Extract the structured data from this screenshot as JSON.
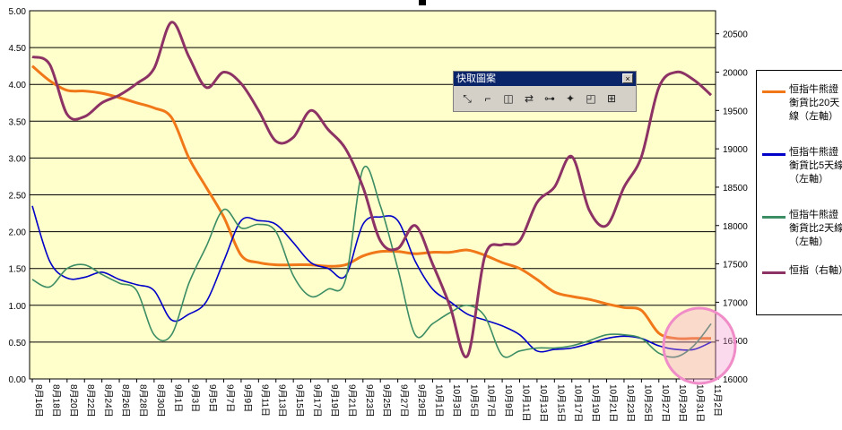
{
  "chart_data": {
    "type": "line",
    "x": [
      "8月16日",
      "8月18日",
      "8月20日",
      "8月22日",
      "8月24日",
      "8月26日",
      "8月28日",
      "8月30日",
      "9月1日",
      "9月3日",
      "9月5日",
      "9月7日",
      "9月9日",
      "9月11日",
      "9月13日",
      "9月15日",
      "9月17日",
      "9月19日",
      "9月21日",
      "9月23日",
      "9月25日",
      "9月27日",
      "9月29日",
      "10月1日",
      "10月3日",
      "10月5日",
      "10月7日",
      "10月9日",
      "10月11日",
      "10月13日",
      "10月15日",
      "10月17日",
      "10月19日",
      "10月21日",
      "10月23日",
      "10月25日",
      "10月27日",
      "10月29日",
      "10月31日",
      "11月2日"
    ],
    "y_left": {
      "ticks": [
        "0.00",
        "0.50",
        "1.00",
        "1.50",
        "2.00",
        "2.50",
        "3.00",
        "3.50",
        "4.00",
        "4.50",
        "5.00"
      ],
      "ylim": [
        0,
        5
      ]
    },
    "y_right": {
      "ticks": [
        "16000",
        "16500",
        "17000",
        "17500",
        "18000",
        "18500",
        "19000",
        "19500",
        "20000",
        "20500"
      ],
      "ylim": [
        16000,
        20800
      ]
    },
    "series": [
      {
        "name": "恒指牛熊證衡貨比20天線（左軸）",
        "axis": "left",
        "color": "#f07818",
        "values": [
          4.25,
          4.05,
          3.92,
          3.91,
          3.88,
          3.82,
          3.75,
          3.68,
          3.55,
          3.0,
          2.6,
          2.2,
          1.68,
          1.58,
          1.55,
          1.55,
          1.55,
          1.53,
          1.55,
          1.67,
          1.73,
          1.73,
          1.7,
          1.72,
          1.72,
          1.75,
          1.68,
          1.58,
          1.5,
          1.35,
          1.18,
          1.12,
          1.08,
          1.02,
          0.97,
          0.93,
          0.62,
          0.55,
          0.55,
          0.55
        ]
      },
      {
        "name": "恒指牛熊證衡貨比5天線（左軸）",
        "axis": "left",
        "color": "#0000c8",
        "values": [
          2.35,
          1.6,
          1.37,
          1.38,
          1.45,
          1.35,
          1.28,
          1.2,
          0.8,
          0.88,
          1.05,
          1.6,
          2.15,
          2.15,
          2.1,
          1.85,
          1.58,
          1.5,
          1.4,
          2.1,
          2.2,
          2.15,
          1.6,
          1.22,
          1.05,
          0.88,
          0.8,
          0.72,
          0.6,
          0.38,
          0.4,
          0.42,
          0.48,
          0.55,
          0.58,
          0.55,
          0.45,
          0.4,
          0.4,
          0.5
        ]
      },
      {
        "name": "恒指牛熊證衡貨比2天線（左軸）",
        "axis": "left",
        "color": "#3c8c64",
        "values": [
          1.35,
          1.25,
          1.5,
          1.55,
          1.42,
          1.3,
          1.2,
          0.6,
          0.6,
          1.3,
          1.8,
          2.3,
          2.05,
          2.1,
          2.0,
          1.4,
          1.12,
          1.22,
          1.35,
          2.85,
          2.35,
          1.5,
          0.6,
          0.75,
          0.9,
          1.0,
          0.85,
          0.32,
          0.38,
          0.42,
          0.42,
          0.45,
          0.52,
          0.6,
          0.6,
          0.55,
          0.35,
          0.3,
          0.45,
          0.75
        ]
      },
      {
        "name": "恒指（右軸）",
        "axis": "right",
        "color": "#8c3264",
        "values": [
          20200,
          20100,
          19450,
          19420,
          19600,
          19700,
          19850,
          20050,
          20650,
          20200,
          19800,
          20000,
          19850,
          19500,
          19100,
          19150,
          19500,
          19250,
          19000,
          18500,
          17800,
          17700,
          18000,
          17500,
          16950,
          16300,
          17600,
          17750,
          17800,
          18300,
          18500,
          18900,
          18200,
          18000,
          18500,
          18900,
          19800,
          20000,
          19900,
          19700
        ]
      }
    ]
  },
  "toolbar": {
    "title": "快取圖案",
    "close": "×"
  }
}
